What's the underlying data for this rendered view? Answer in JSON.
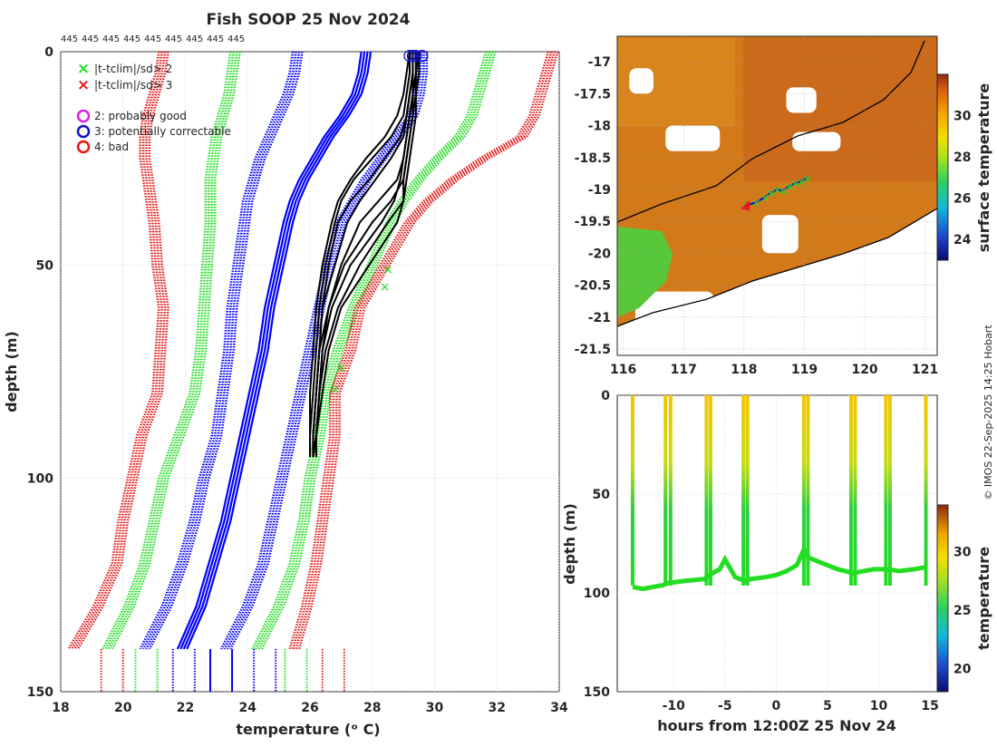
{
  "title": "Fish SOOP 25 Nov 2024",
  "credit": "© IMOS 22-Sep-2025 14:25 Hobart",
  "colors": {
    "profile_obs": "#000000",
    "clim_mean": "#0000ff",
    "sd2": "#22dd22",
    "sd3": "#e41a1c",
    "flag_probably_good": "#dd22dd",
    "flag_potentially_correctable": "#1111cc",
    "flag_bad": "#ee1111",
    "land_mask": "#ffffff",
    "coast": "#000000"
  },
  "chart_data": [
    {
      "id": "profile",
      "type": "line",
      "title": "Fish SOOP 25 Nov 2024",
      "top_labels": [
        "445",
        "445",
        "445",
        "445",
        "445",
        "445",
        "445",
        "445",
        "445"
      ],
      "xlabel": "temperature (ᵒ C)",
      "ylabel": "depth (m)",
      "xlim": [
        18,
        34
      ],
      "ylim": [
        150,
        0
      ],
      "xticks": [
        "18",
        "20",
        "22",
        "24",
        "26",
        "28",
        "30",
        "32",
        "34"
      ],
      "yticks": [
        "0",
        "50",
        "100",
        "150"
      ],
      "grid": true,
      "legend": {
        "markers": [
          {
            "label": "|t-tclim|/sd> 2",
            "symbol": "×",
            "color_key": "sd2"
          },
          {
            "label": "|t-tclim|/sd> 3",
            "symbol": "×",
            "color_key": "sd3"
          }
        ],
        "flags": [
          {
            "label": "2: probably good",
            "color_key": "flag_probably_good"
          },
          {
            "label": "3: potentially correctable",
            "color_key": "flag_potentially_correctable"
          },
          {
            "label": "4: bad",
            "color_key": "flag_bad"
          }
        ]
      },
      "clim_depth": [
        0,
        5,
        10,
        15,
        20,
        25,
        30,
        35,
        40,
        50,
        60,
        70,
        80,
        90,
        100,
        110,
        120,
        130,
        140
      ],
      "series": [
        {
          "name": "clim -3sd left",
          "style": "dotted",
          "color_key": "sd3",
          "x": [
            21.3,
            21.2,
            21.0,
            20.8,
            20.7,
            20.7,
            20.8,
            20.9,
            21.0,
            21.1,
            21.3,
            21.2,
            21.1,
            20.6,
            20.3,
            20.0,
            19.8,
            19.2,
            18.4
          ]
        },
        {
          "name": "clim -2sd left",
          "style": "dotted",
          "color_key": "sd2",
          "x": [
            23.6,
            23.5,
            23.4,
            23.2,
            23.0,
            22.9,
            22.8,
            22.8,
            22.8,
            22.7,
            22.6,
            22.5,
            22.3,
            21.8,
            21.3,
            21.0,
            20.7,
            20.2,
            19.5
          ]
        },
        {
          "name": "clim mean -1",
          "style": "dotted",
          "color_key": "clim_mean",
          "x": [
            25.6,
            25.5,
            25.3,
            25.0,
            24.7,
            24.4,
            24.2,
            24.0,
            23.9,
            23.7,
            23.5,
            23.4,
            23.2,
            23.0,
            22.6,
            22.3,
            21.9,
            21.4,
            20.7
          ]
        },
        {
          "name": "clim mean",
          "style": "solid",
          "color_key": "clim_mean",
          "x": [
            27.8,
            27.7,
            27.5,
            27.1,
            26.6,
            26.2,
            25.8,
            25.5,
            25.3,
            25.0,
            24.7,
            24.5,
            24.2,
            23.9,
            23.6,
            23.3,
            22.9,
            22.5,
            21.9
          ]
        },
        {
          "name": "clim mean +1",
          "style": "dotted",
          "color_key": "clim_mean",
          "x": [
            29.6,
            29.6,
            29.5,
            29.3,
            28.8,
            28.3,
            27.8,
            27.4,
            27.0,
            26.6,
            26.3,
            26.0,
            25.7,
            25.4,
            25.1,
            24.8,
            24.5,
            24.0,
            23.3
          ]
        },
        {
          "name": "clim +2sd right",
          "style": "dotted",
          "color_key": "sd2",
          "x": [
            31.8,
            31.6,
            31.4,
            31.2,
            30.8,
            30.1,
            29.5,
            29.0,
            28.6,
            28.0,
            27.4,
            26.9,
            26.5,
            26.3,
            26.0,
            25.8,
            25.5,
            25.0,
            24.3
          ]
        },
        {
          "name": "clim +3sd right",
          "style": "dotted",
          "color_key": "sd3",
          "x": [
            33.8,
            33.6,
            33.4,
            33.2,
            32.8,
            31.6,
            30.6,
            29.8,
            29.2,
            28.4,
            27.6,
            27.3,
            26.8,
            26.8,
            26.6,
            26.4,
            26.2,
            25.9,
            25.5
          ]
        }
      ],
      "observed_profiles": {
        "count": 9,
        "color_key": "profile_obs",
        "depth": [
          0,
          5,
          10,
          15,
          20,
          25,
          30,
          35,
          40,
          50,
          60,
          70,
          80,
          90,
          95
        ],
        "x": [
          [
            29.3,
            29.3,
            29.2,
            29.1,
            29.0,
            28.6,
            28.1,
            27.6,
            27.2,
            26.8,
            26.4,
            26.3,
            26.2,
            26.1,
            26.1
          ],
          [
            29.4,
            29.4,
            29.3,
            29.2,
            29.1,
            29.0,
            28.8,
            28.2,
            27.6,
            27.0,
            26.6,
            26.4,
            26.3,
            26.2,
            26.1
          ],
          [
            29.2,
            29.2,
            29.1,
            29.0,
            28.6,
            28.0,
            27.4,
            27.0,
            26.8,
            26.5,
            26.3,
            26.2,
            26.1,
            26.0,
            26.0
          ],
          [
            29.5,
            29.5,
            29.4,
            29.4,
            29.3,
            29.2,
            29.1,
            29.0,
            28.5,
            27.6,
            26.9,
            26.5,
            26.3,
            26.2,
            26.1
          ],
          [
            29.3,
            29.3,
            29.3,
            29.2,
            29.1,
            29.0,
            28.9,
            28.7,
            28.3,
            27.3,
            26.7,
            26.4,
            26.3,
            26.2,
            26.2
          ],
          [
            29.2,
            29.1,
            29.0,
            28.8,
            28.4,
            27.8,
            27.3,
            26.9,
            26.7,
            26.4,
            26.2,
            26.1,
            26.0,
            26.0,
            26.0
          ],
          [
            29.4,
            29.4,
            29.3,
            29.3,
            29.2,
            29.1,
            29.0,
            28.6,
            28.0,
            27.1,
            26.6,
            26.3,
            26.2,
            26.1,
            26.1
          ],
          [
            29.3,
            29.3,
            29.2,
            29.1,
            28.9,
            28.4,
            27.9,
            27.3,
            26.9,
            26.6,
            26.4,
            26.3,
            26.2,
            26.1,
            26.1
          ],
          [
            29.5,
            29.4,
            29.4,
            29.3,
            29.2,
            29.1,
            29.0,
            29.0,
            28.8,
            27.9,
            27.0,
            26.6,
            26.4,
            26.2,
            26.2
          ]
        ]
      },
      "flagged_points": [
        {
          "t": 29.2,
          "depth": 1,
          "flag": 3
        },
        {
          "t": 29.4,
          "depth": 1,
          "flag": 3
        },
        {
          "t": 29.6,
          "depth": 1,
          "flag": 3
        },
        {
          "t": 29.3,
          "depth": 1,
          "flag": 3
        },
        {
          "t": 28.5,
          "depth": 51,
          "sd": 2
        },
        {
          "t": 28.4,
          "depth": 55,
          "sd": 2
        },
        {
          "t": 27.0,
          "depth": 74,
          "sd": 2
        },
        {
          "t": 26.8,
          "depth": 79,
          "sd": 2
        }
      ]
    },
    {
      "id": "map",
      "type": "heatmap",
      "colorbar_label": "surface temperature",
      "colorbar_ticks": [
        "24",
        "26",
        "28",
        "30"
      ],
      "colorbar_range": [
        23,
        32
      ],
      "xlim": [
        115.9,
        121.2
      ],
      "ylim": [
        -21.6,
        -16.6
      ],
      "xticks": [
        "116",
        "117",
        "118",
        "119",
        "120",
        "121"
      ],
      "yticks": [
        "-17",
        "-17.5",
        "-18",
        "-18.5",
        "-19",
        "-19.5",
        "-20",
        "-20.5",
        "-21",
        "-21.5"
      ],
      "track": {
        "lon": [
          118.05,
          118.2,
          118.35,
          118.45,
          118.55,
          118.65,
          118.75,
          118.85,
          118.95,
          119.05
        ],
        "lat": [
          -19.25,
          -19.2,
          -19.12,
          -19.05,
          -19.0,
          -19.02,
          -18.95,
          -18.9,
          -18.87,
          -18.82
        ]
      },
      "cloud_patches": [
        {
          "lon": [
            116.7,
            117.6
          ],
          "lat": [
            -18.0,
            -18.4
          ]
        },
        {
          "lon": [
            116.1,
            116.5
          ],
          "lat": [
            -17.1,
            -17.5
          ]
        },
        {
          "lon": [
            118.7,
            119.2
          ],
          "lat": [
            -17.4,
            -17.8
          ]
        },
        {
          "lon": [
            118.8,
            119.6
          ],
          "lat": [
            -18.1,
            -18.4
          ]
        },
        {
          "lon": [
            118.3,
            118.9
          ],
          "lat": [
            -19.4,
            -20.0
          ]
        },
        {
          "lon": [
            116.2,
            117.5
          ],
          "lat": [
            -20.6,
            -21.2
          ]
        }
      ]
    },
    {
      "id": "section",
      "type": "heatmap",
      "xlabel": "hours from 12:00Z 25 Nov 24",
      "ylabel": "depth (m)",
      "colorbar_label": "temperature",
      "colorbar_ticks": [
        "20",
        "25",
        "30"
      ],
      "colorbar_range": [
        18,
        34
      ],
      "xlim": [
        -15.5,
        15.7
      ],
      "ylim": [
        150,
        0
      ],
      "xticks": [
        "-10",
        "-5",
        "0",
        "5",
        "10",
        "15"
      ],
      "yticks": [
        "0",
        "50",
        "100",
        "150"
      ],
      "drop_hours": [
        -14.0,
        -10.8,
        -10.3,
        -6.8,
        -6.4,
        -3.2,
        -2.8,
        2.7,
        3.1,
        7.3,
        7.7,
        10.7,
        11.1,
        14.6
      ],
      "bottom_depth": {
        "hours": [
          -14.0,
          -13.0,
          -12.0,
          -11.0,
          -10.5,
          -9.0,
          -7.0,
          -6.5,
          -5.5,
          -5.0,
          -4.0,
          -3.0,
          -2.5,
          -1.0,
          0.0,
          1.0,
          2.0,
          2.7,
          3.1,
          4.5,
          6.0,
          7.5,
          8.5,
          9.5,
          10.9,
          12.0,
          13.5,
          14.6
        ],
        "depth": [
          97,
          98,
          97,
          96,
          95,
          94,
          93,
          91,
          88,
          83,
          92,
          94,
          93,
          92,
          91,
          89,
          86,
          78,
          82,
          85,
          88,
          90,
          89,
          88,
          88,
          89,
          88,
          87
        ]
      }
    }
  ]
}
